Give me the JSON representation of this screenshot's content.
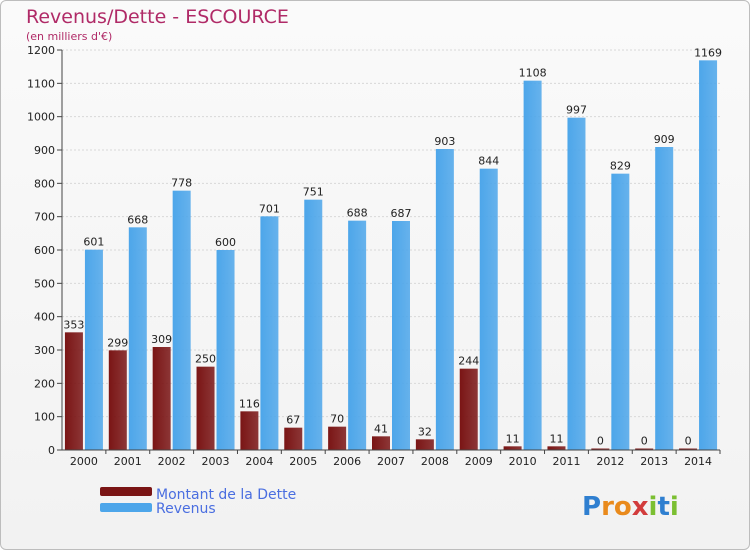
{
  "chart_data": {
    "type": "bar",
    "title": "Revenus/Dette - ESCOURCE",
    "subtitle": "(en milliers d'€)",
    "categories": [
      "2000",
      "2001",
      "2002",
      "2003",
      "2004",
      "2005",
      "2006",
      "2007",
      "2008",
      "2009",
      "2010",
      "2011",
      "2012",
      "2013",
      "2014"
    ],
    "series": [
      {
        "name": "Montant de la Dette",
        "color": "#7a1515",
        "values": [
          353,
          299,
          309,
          250,
          116,
          67,
          70,
          41,
          32,
          244,
          11,
          11,
          0,
          0,
          0
        ]
      },
      {
        "name": "Revenus",
        "color": "#4da6ea",
        "values": [
          601,
          668,
          778,
          600,
          701,
          751,
          688,
          687,
          903,
          844,
          1108,
          997,
          829,
          909,
          1169
        ]
      }
    ],
    "ylim": [
      0,
      1200
    ],
    "yticks": [
      0,
      100,
      200,
      300,
      400,
      500,
      600,
      700,
      800,
      900,
      1000,
      1100,
      1200
    ],
    "grid": true,
    "legend_position": "bottom-left"
  },
  "logo": {
    "text": "Proxiti",
    "letters": [
      "P",
      "r",
      "o",
      "x",
      "i",
      "t",
      "i"
    ],
    "colors": [
      "#2f7fd0",
      "#e98a1c",
      "#e98a1c",
      "#d23c3c",
      "#7bbf32",
      "#2f7fd0",
      "#7bbf32"
    ]
  }
}
